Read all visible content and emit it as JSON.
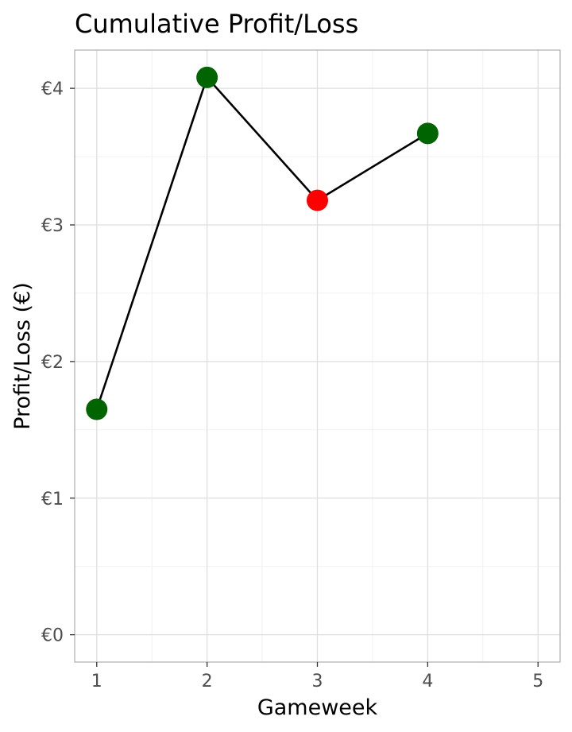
{
  "chart_data": {
    "type": "line",
    "title": "Cumulative Profit/Loss",
    "xlabel": "Gameweek",
    "ylabel": "Profit/Loss (€)",
    "x": [
      1,
      2,
      3,
      4
    ],
    "y": [
      1.65,
      4.08,
      3.18,
      3.67
    ],
    "point_colors": [
      "#006400",
      "#006400",
      "#ff0000",
      "#006400"
    ],
    "line_color": "#000000",
    "xlim": [
      0.8,
      5.2
    ],
    "ylim": [
      -0.2,
      4.28
    ],
    "x_ticks": [
      1,
      2,
      3,
      4,
      5
    ],
    "x_tick_labels": [
      "1",
      "2",
      "3",
      "4",
      "5"
    ],
    "y_ticks": [
      0,
      1,
      2,
      3,
      4
    ],
    "y_tick_labels": [
      "€0",
      "€1",
      "€2",
      "€3",
      "€4"
    ],
    "grid": true,
    "legend": "none"
  }
}
